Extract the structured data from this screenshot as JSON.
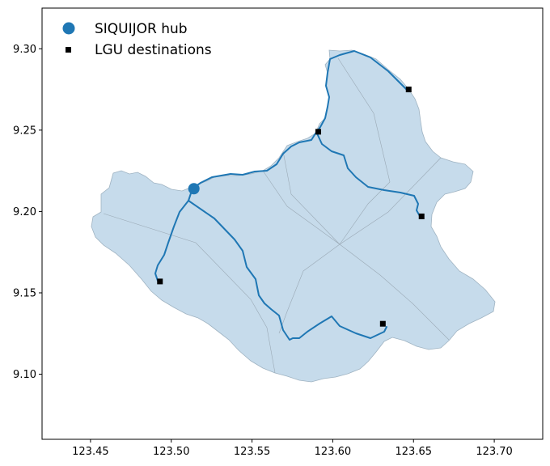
{
  "chart_data": {
    "type": "map",
    "title": "",
    "xlabel": "",
    "ylabel": "",
    "xlim": [
      123.42,
      123.73
    ],
    "ylim": [
      9.06,
      9.325
    ],
    "x_ticks": [
      "123.45",
      "123.50",
      "123.55",
      "123.60",
      "123.65",
      "123.70"
    ],
    "y_ticks": [
      "9.10",
      "9.15",
      "9.20",
      "9.25",
      "9.30"
    ],
    "legend": {
      "position": "top-left",
      "entries": [
        {
          "label": "SIQUIJOR hub",
          "marker": "circle",
          "color": "#1f77b4"
        },
        {
          "label": "LGU destinations",
          "marker": "square",
          "color": "#000000"
        }
      ]
    },
    "hub": {
      "name": "SIQUIJOR hub",
      "x": 123.514,
      "y": 9.214
    },
    "destinations": [
      {
        "x": 123.591,
        "y": 9.249
      },
      {
        "x": 123.647,
        "y": 9.275
      },
      {
        "x": 123.655,
        "y": 9.197
      },
      {
        "x": 123.493,
        "y": 9.157
      },
      {
        "x": 123.631,
        "y": 9.131
      }
    ],
    "colors": {
      "island_fill": "#c6dbeb",
      "boundary": "#9fb3c2",
      "route": "#1f77b4",
      "hub": "#1f77b4",
      "destination": "#000000"
    }
  }
}
